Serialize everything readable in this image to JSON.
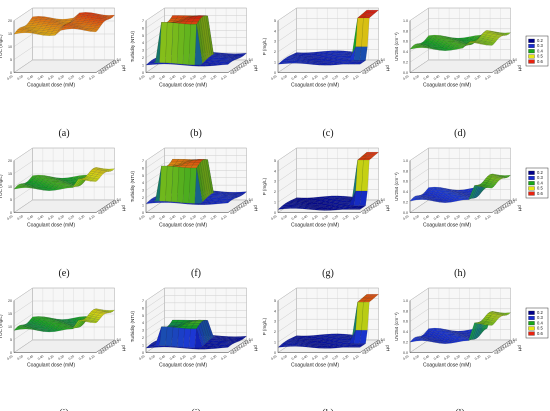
{
  "colors": {
    "level1": "#00008c",
    "level2": "#1a2dd6",
    "level3": "#17a81a",
    "level4": "#e8e812",
    "level5": "#e8220f"
  },
  "legend": {
    "entries": [
      "0.2",
      "0.3",
      "0.4",
      "0.5",
      "0.6"
    ]
  },
  "chart_data": [
    {
      "type": "surface",
      "caption": "(a)",
      "zlabel": "TOC (mg/L)",
      "xlabel": "Coagulant dose (mM)",
      "ylabel": "pH",
      "zticks": [
        "0",
        "5",
        "10",
        "15",
        "20"
      ],
      "zlim": [
        0,
        20
      ],
      "xticks": [
        "0.55",
        "0.50",
        "0.45",
        "0.40",
        "0.35",
        "0.30",
        "0.25",
        "0.20",
        "0.15"
      ],
      "yticks": [
        "4.5",
        "5.0",
        "5.5",
        "6.0",
        "6.5",
        "7.0",
        "7.5",
        "8.0",
        "8.5",
        "9.0"
      ],
      "low_level": 15.5,
      "high_level": 17.0,
      "step_x": 0.45,
      "rise_with_ph": true
    },
    {
      "type": "surface",
      "caption": "(b)",
      "zlabel": "Turbidity (NTU)",
      "xlabel": "Coagulant dose (mM)",
      "ylabel": "pH",
      "zticks": [
        "0",
        "1",
        "2",
        "3",
        "4",
        "5",
        "6",
        "7"
      ],
      "zlim": [
        0,
        7
      ],
      "xticks": [
        "0.55",
        "0.50",
        "0.45",
        "0.40",
        "0.35",
        "0.30",
        "0.25",
        "0.20",
        "0.15"
      ],
      "yticks": [
        "4.5",
        "5.0",
        "5.5",
        "6.0",
        "6.5",
        "7.0",
        "7.5",
        "8.0",
        "8.5",
        "9.0"
      ],
      "shape": "plateau",
      "plateau_level": 6.3,
      "base_level": 1.0
    },
    {
      "type": "surface",
      "caption": "(c)",
      "zlabel": "P (mg/L)",
      "xlabel": "Coagulant dose (mM)",
      "ylabel": "pH",
      "zticks": [
        "0",
        "1",
        "2",
        "3",
        "4",
        "5"
      ],
      "zlim": [
        0,
        5
      ],
      "xticks": [
        "0.55",
        "0.50",
        "0.45",
        "0.40",
        "0.35",
        "0.30",
        "0.25",
        "0.20",
        "0.15"
      ],
      "yticks": [
        "4.5",
        "5.0",
        "5.5",
        "6.0",
        "6.5",
        "7.0",
        "7.5",
        "8.0",
        "8.5",
        "9.0"
      ],
      "shape": "cliff",
      "low_level": 0.8,
      "high_level": 4.8,
      "step_x": 0.2
    },
    {
      "type": "surface",
      "caption": "(d)",
      "zlabel": "UV254 (cm⁻¹)",
      "xlabel": "Coagulant dose (mM)",
      "ylabel": "pH",
      "zticks": [
        "0.0",
        "0.2",
        "0.4",
        "0.6",
        "0.8",
        "1.0"
      ],
      "zlim": [
        0,
        1.0
      ],
      "xticks": [
        "0.55",
        "0.50",
        "0.45",
        "0.40",
        "0.35",
        "0.30",
        "0.25",
        "0.20",
        "0.15"
      ],
      "yticks": [
        "4.5",
        "5.0",
        "5.5",
        "6.0",
        "6.5",
        "7.0",
        "7.5",
        "8.0",
        "8.5",
        "9.0"
      ],
      "low_level": 0.45,
      "high_level": 0.55,
      "step_x": 0.3
    },
    {
      "type": "surface",
      "caption": "(e)",
      "zlabel": "TOC (mg/L)",
      "xlabel": "Coagulant dose (mM)",
      "ylabel": "pH",
      "zticks": [
        "0",
        "5",
        "10",
        "15",
        "20"
      ],
      "zlim": [
        0,
        20
      ],
      "xticks": [
        "0.55",
        "0.50",
        "0.45",
        "0.40",
        "0.35",
        "0.30",
        "0.25",
        "0.20",
        "0.15"
      ],
      "yticks": [
        "4.5",
        "5.0",
        "5.5",
        "6.0",
        "6.5",
        "7.0",
        "7.5",
        "8.0",
        "8.5",
        "9.0"
      ],
      "low_level": 9.0,
      "high_level": 12.5,
      "step_x": 0.25
    },
    {
      "type": "surface",
      "caption": "(f)",
      "zlabel": "Turbidity (NTU)",
      "xlabel": "Coagulant dose (mM)",
      "ylabel": "pH",
      "zticks": [
        "0",
        "1",
        "2",
        "3",
        "4",
        "5",
        "6",
        "7"
      ],
      "zlim": [
        0,
        7
      ],
      "xticks": [
        "0.55",
        "0.50",
        "0.45",
        "0.40",
        "0.35",
        "0.30",
        "0.25",
        "0.20",
        "0.15"
      ],
      "yticks": [
        "4.5",
        "5.0",
        "5.5",
        "6.0",
        "6.5",
        "7.0",
        "7.5",
        "8.0",
        "8.5",
        "9.0"
      ],
      "shape": "plateau",
      "plateau_level": 5.8,
      "base_level": 1.2
    },
    {
      "type": "surface",
      "caption": "(g)",
      "zlabel": "P (mg/L)",
      "xlabel": "Coagulant dose (mM)",
      "ylabel": "pH",
      "zticks": [
        "0",
        "1",
        "2",
        "3",
        "4",
        "5"
      ],
      "zlim": [
        0,
        5
      ],
      "xticks": [
        "0.55",
        "0.50",
        "0.45",
        "0.40",
        "0.35",
        "0.30",
        "0.25",
        "0.20",
        "0.15"
      ],
      "yticks": [
        "4.5",
        "5.0",
        "5.5",
        "6.0",
        "6.5",
        "7.0",
        "7.5",
        "8.0",
        "8.5",
        "9.0"
      ],
      "shape": "cliff",
      "low_level": 0.3,
      "high_level": 4.6,
      "step_x": 0.2
    },
    {
      "type": "surface",
      "caption": "(h)",
      "zlabel": "UV254 (cm⁻¹)",
      "xlabel": "Coagulant dose (mM)",
      "ylabel": "pH",
      "zticks": [
        "0.0",
        "0.2",
        "0.4",
        "0.6",
        "0.8",
        "1.0"
      ],
      "zlim": [
        0,
        1.0
      ],
      "xticks": [
        "0.55",
        "0.50",
        "0.45",
        "0.40",
        "0.35",
        "0.30",
        "0.25",
        "0.20",
        "0.15"
      ],
      "yticks": [
        "4.5",
        "5.0",
        "5.5",
        "6.0",
        "6.5",
        "7.0",
        "7.5",
        "8.0",
        "8.5",
        "9.0"
      ],
      "low_level": 0.22,
      "high_level": 0.5,
      "step_x": 0.25
    },
    {
      "type": "surface",
      "caption": "(i)",
      "zlabel": "TOC (mg/L)",
      "xlabel": "Coagulant dose (mM)",
      "ylabel": "pH",
      "zticks": [
        "0",
        "5",
        "10",
        "15",
        "20"
      ],
      "zlim": [
        0,
        20
      ],
      "xticks": [
        "0.55",
        "0.50",
        "0.45",
        "0.40",
        "0.35",
        "0.30",
        "0.25",
        "0.20",
        "0.15"
      ],
      "yticks": [
        "4.5",
        "5.0",
        "5.5",
        "6.0",
        "6.5",
        "7.0",
        "7.5",
        "8.0",
        "8.5",
        "9.0"
      ],
      "low_level": 8.5,
      "high_level": 12.0,
      "step_x": 0.25
    },
    {
      "type": "surface",
      "caption": "(j)",
      "zlabel": "Turbidity (NTU)",
      "xlabel": "Coagulant dose (mM)",
      "ylabel": "pH",
      "zticks": [
        "0",
        "1",
        "2",
        "3",
        "4",
        "5",
        "6",
        "7"
      ],
      "zlim": [
        0,
        7
      ],
      "xticks": [
        "0.55",
        "0.50",
        "0.45",
        "0.40",
        "0.35",
        "0.30",
        "0.25",
        "0.20",
        "0.15"
      ],
      "yticks": [
        "4.5",
        "5.0",
        "5.5",
        "6.0",
        "6.5",
        "7.0",
        "7.5",
        "8.0",
        "8.5",
        "9.0"
      ],
      "shape": "plateau",
      "plateau_level": 3.0,
      "base_level": 0.6
    },
    {
      "type": "surface",
      "caption": "(k)",
      "zlabel": "P (mg/L)",
      "xlabel": "Coagulant dose (mM)",
      "ylabel": "pH",
      "zticks": [
        "0",
        "1",
        "2",
        "3",
        "4",
        "5"
      ],
      "zlim": [
        0,
        5
      ],
      "xticks": [
        "0.55",
        "0.50",
        "0.45",
        "0.40",
        "0.35",
        "0.30",
        "0.25",
        "0.20",
        "0.15"
      ],
      "yticks": [
        "4.5",
        "5.0",
        "5.5",
        "6.0",
        "6.5",
        "7.0",
        "7.5",
        "8.0",
        "8.5",
        "9.0"
      ],
      "shape": "cliff",
      "low_level": 0.5,
      "high_level": 4.4,
      "step_x": 0.2
    },
    {
      "type": "surface",
      "caption": "(l)",
      "zlabel": "UV254 (cm⁻¹)",
      "xlabel": "Coagulant dose (mM)",
      "ylabel": "pH",
      "zticks": [
        "0.0",
        "0.2",
        "0.4",
        "0.6",
        "0.8",
        "1.0"
      ],
      "zlim": [
        0,
        1.0
      ],
      "xticks": [
        "0.55",
        "0.50",
        "0.45",
        "0.40",
        "0.35",
        "0.30",
        "0.25",
        "0.20",
        "0.15"
      ],
      "yticks": [
        "4.5",
        "5.0",
        "5.5",
        "6.0",
        "6.5",
        "7.0",
        "7.5",
        "8.0",
        "8.5",
        "9.0"
      ],
      "low_level": 0.2,
      "high_level": 0.55,
      "step_x": 0.25
    }
  ]
}
